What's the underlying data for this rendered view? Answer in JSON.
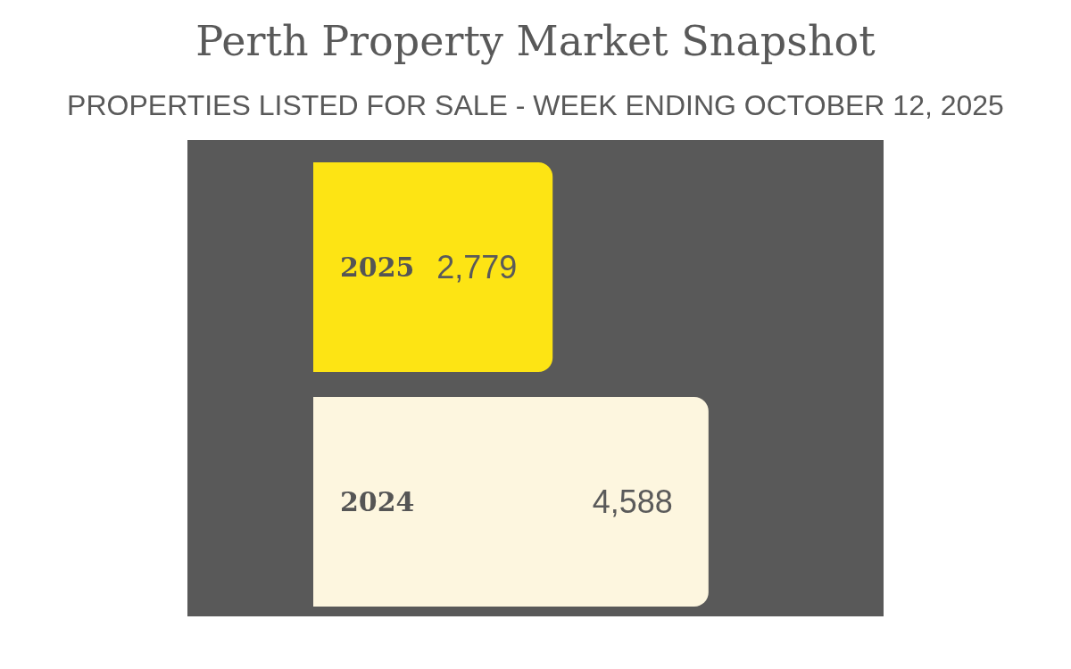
{
  "chart_data": {
    "type": "bar",
    "orientation": "horizontal",
    "title": "Perth Property Market Snapshot",
    "subtitle": "PROPERTIES LISTED FOR SALE - WEEK ENDING OCTOBER 12, 2025",
    "categories": [
      "2025",
      "2024"
    ],
    "values": [
      2779,
      4588
    ],
    "colors": [
      "#fde414",
      "#fdf6df"
    ],
    "value_labels": [
      "2,779",
      "4,588"
    ]
  }
}
